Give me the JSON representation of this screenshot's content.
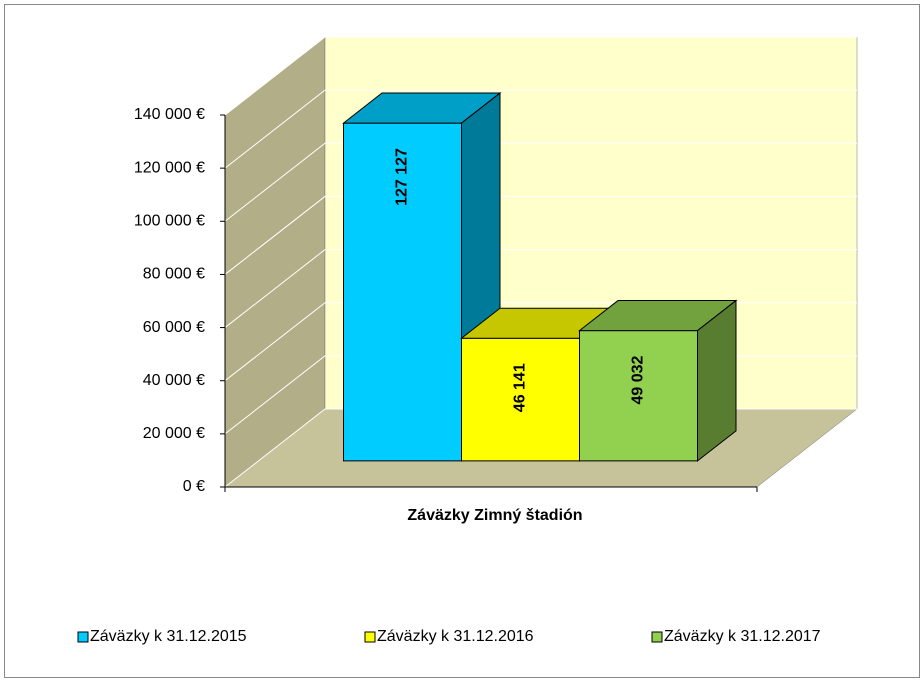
{
  "chart_data": {
    "type": "bar3d",
    "categories": [
      "Záväzky Zimný štadión"
    ],
    "series": [
      {
        "name": "Záväzky k 31.12.2015",
        "color": "#00ccff",
        "values": [
          127127
        ],
        "value_labels": [
          "127 127"
        ]
      },
      {
        "name": "Záväzky k 31.12.2016",
        "color": "#ffff00",
        "values": [
          46141
        ],
        "value_labels": [
          "46 141"
        ]
      },
      {
        "name": "Záväzky k 31.12.2017",
        "color": "#92d050",
        "values": [
          49032
        ],
        "value_labels": [
          "49 032"
        ]
      }
    ],
    "ylim": [
      0,
      140000
    ],
    "yticks": [
      {
        "value": 0,
        "label": "0 €"
      },
      {
        "value": 20000,
        "label": "20 000 €"
      },
      {
        "value": 40000,
        "label": "40 000 €"
      },
      {
        "value": 60000,
        "label": "60 000 €"
      },
      {
        "value": 80000,
        "label": "80 000 €"
      },
      {
        "value": 100000,
        "label": "100 000 €"
      },
      {
        "value": 120000,
        "label": "120 000 €"
      },
      {
        "value": 140000,
        "label": "140 000 €"
      }
    ],
    "grid": true,
    "legend": "bottom"
  }
}
